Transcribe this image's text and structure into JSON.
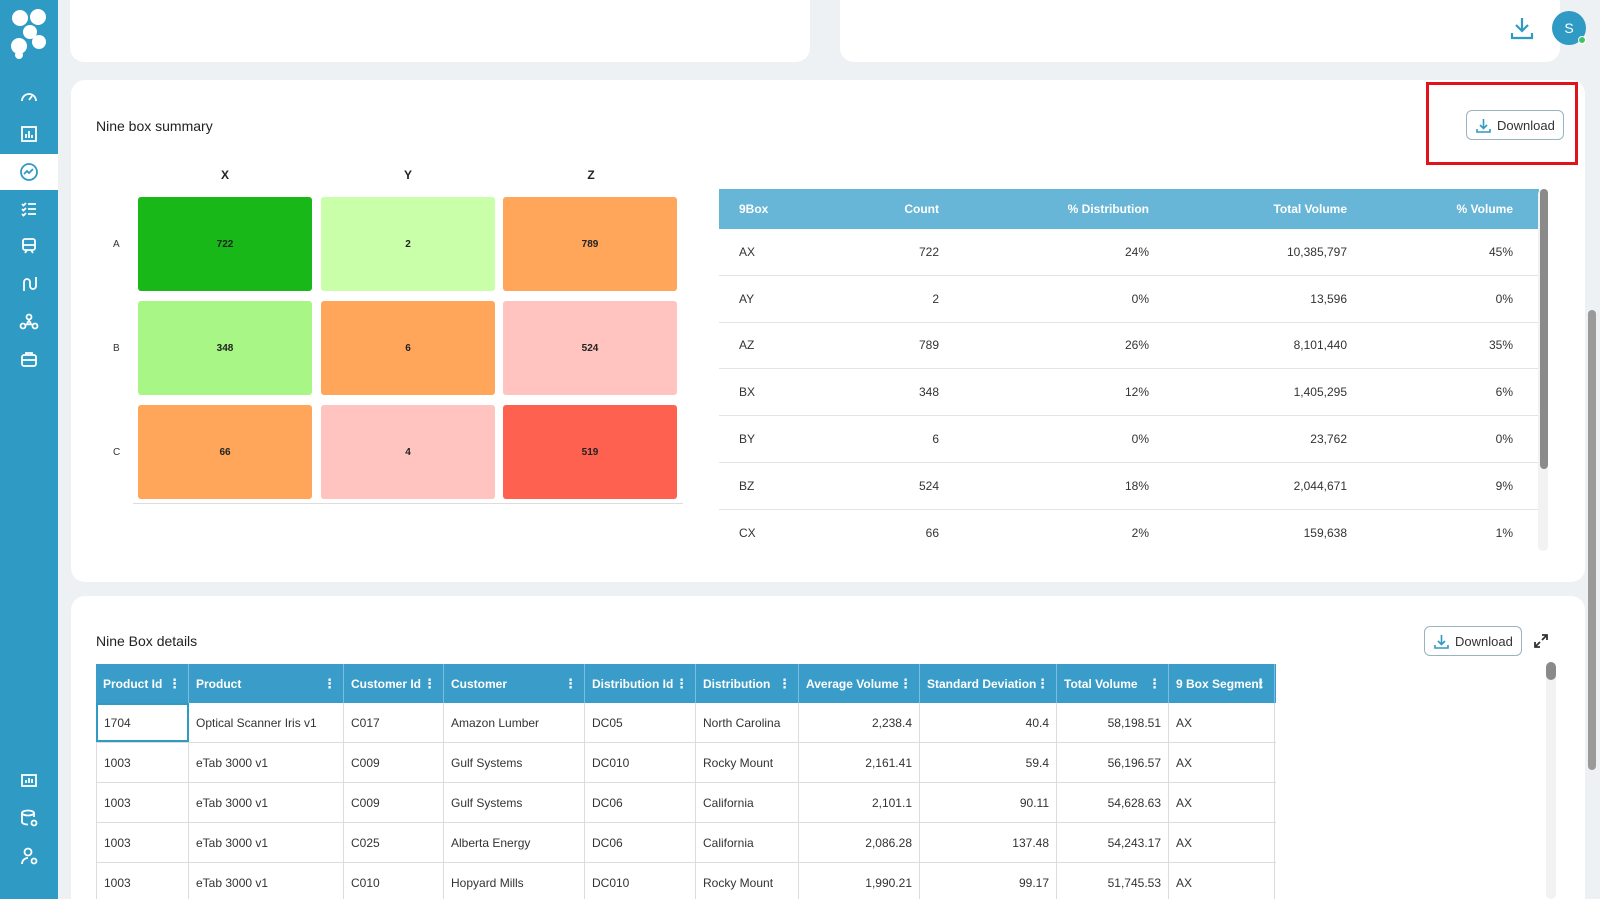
{
  "user": {
    "initial": "S"
  },
  "colors": {
    "sidebar": "#2f9ac4",
    "header": "#67b6d7",
    "detail_header": "#3a9cc8",
    "highlight": "#e0121a"
  },
  "sidebar": {
    "items": [
      {
        "icon": "gauge-icon",
        "active": false
      },
      {
        "icon": "bar-chart-icon",
        "active": false
      },
      {
        "icon": "trend-icon",
        "active": true
      },
      {
        "icon": "checklist-icon",
        "active": false
      },
      {
        "icon": "train-icon",
        "active": false
      },
      {
        "icon": "route-icon",
        "active": false
      },
      {
        "icon": "network-icon",
        "active": false
      },
      {
        "icon": "briefcase-icon",
        "active": false
      }
    ],
    "bottom_items": [
      {
        "icon": "report-icon"
      },
      {
        "icon": "database-settings-icon"
      },
      {
        "icon": "user-settings-icon"
      }
    ]
  },
  "summary": {
    "title": "Nine box summary",
    "download_label": "Download",
    "columns": [
      "X",
      "Y",
      "Z"
    ],
    "rows": [
      "A",
      "B",
      "C"
    ],
    "grid": [
      [
        {
          "value": "722",
          "color": "#17b817"
        },
        {
          "value": "2",
          "color": "#caffa9"
        },
        {
          "value": "789",
          "color": "#ffa65a"
        }
      ],
      [
        {
          "value": "348",
          "color": "#a8f786"
        },
        {
          "value": "6",
          "color": "#ffa65a"
        },
        {
          "value": "524",
          "color": "#ffc3c0"
        }
      ],
      [
        {
          "value": "66",
          "color": "#ffa65a"
        },
        {
          "value": "4",
          "color": "#ffc3c0"
        },
        {
          "value": "519",
          "color": "#ff6150"
        }
      ]
    ],
    "table": {
      "headers": [
        "9Box",
        "Count",
        "% Distribution",
        "Total Volume",
        "% Volume"
      ],
      "rows": [
        [
          "AX",
          "722",
          "24%",
          "10,385,797",
          "45%"
        ],
        [
          "AY",
          "2",
          "0%",
          "13,596",
          "0%"
        ],
        [
          "AZ",
          "789",
          "26%",
          "8,101,440",
          "35%"
        ],
        [
          "BX",
          "348",
          "12%",
          "1,405,295",
          "6%"
        ],
        [
          "BY",
          "6",
          "0%",
          "23,762",
          "0%"
        ],
        [
          "BZ",
          "524",
          "18%",
          "2,044,671",
          "9%"
        ],
        [
          "CX",
          "66",
          "2%",
          "159,638",
          "1%"
        ]
      ]
    }
  },
  "details": {
    "title": "Nine Box details",
    "download_label": "Download",
    "headers": [
      "Product Id",
      "Product",
      "Customer Id",
      "Customer",
      "Distribution Id",
      "Distribution",
      "Average Volume",
      "Standard Deviation",
      "Total Volume",
      "9 Box Segment"
    ],
    "rows": [
      [
        "1704",
        "Optical Scanner Iris v1",
        "C017",
        "Amazon Lumber",
        "DC05",
        "North Carolina",
        "2,238.4",
        "40.4",
        "58,198.51",
        "AX"
      ],
      [
        "1003",
        "eTab 3000 v1",
        "C009",
        "Gulf Systems",
        "DC010",
        "Rocky Mount",
        "2,161.41",
        "59.4",
        "56,196.57",
        "AX"
      ],
      [
        "1003",
        "eTab 3000 v1",
        "C009",
        "Gulf Systems",
        "DC06",
        "California",
        "2,101.1",
        "90.11",
        "54,628.63",
        "AX"
      ],
      [
        "1003",
        "eTab 3000 v1",
        "C025",
        "Alberta Energy",
        "DC06",
        "California",
        "2,086.28",
        "137.48",
        "54,243.17",
        "AX"
      ],
      [
        "1003",
        "eTab 3000 v1",
        "C010",
        "Hopyard Mills",
        "DC010",
        "Rocky Mount",
        "1,990.21",
        "99.17",
        "51,745.53",
        "AX"
      ]
    ]
  }
}
